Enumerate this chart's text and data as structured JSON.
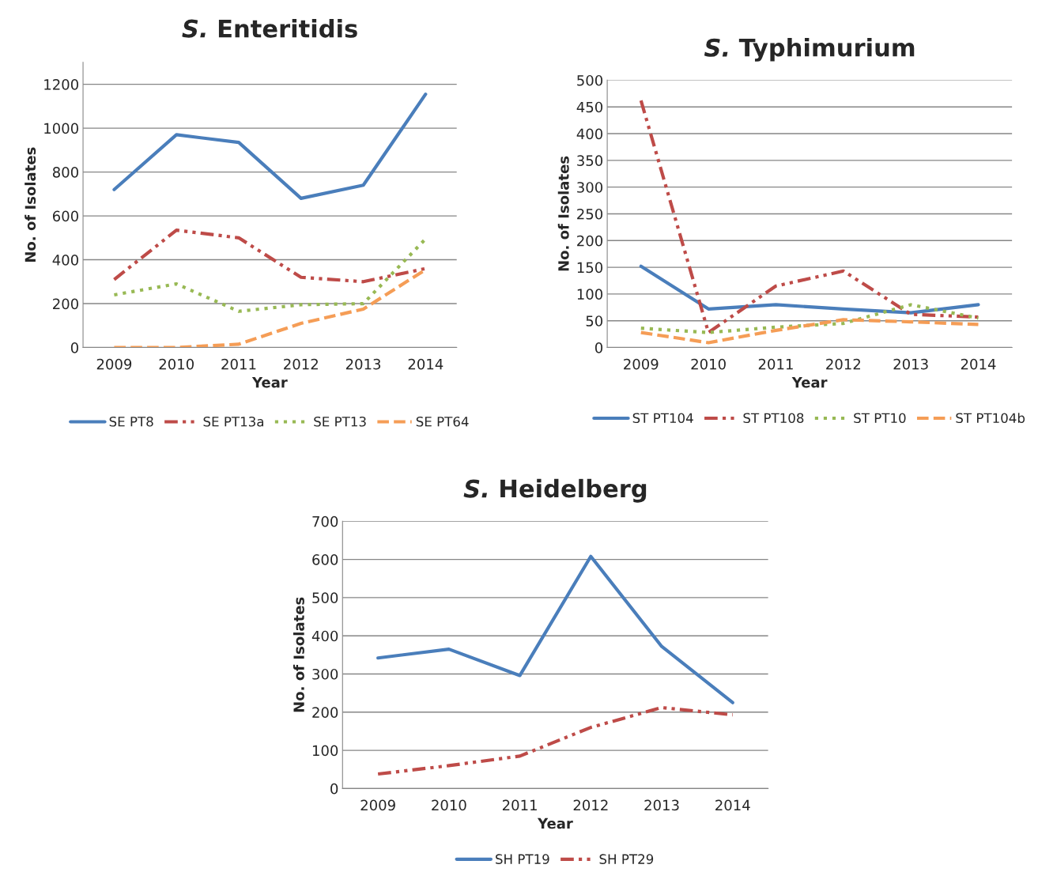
{
  "chart_data": [
    {
      "type": "line",
      "title": "S. Enteritidis",
      "xlabel": "Year",
      "ylabel": "No. of Isolates",
      "categories": [
        "2009",
        "2010",
        "2011",
        "2012",
        "2013",
        "2014"
      ],
      "ylim": [
        0,
        1300
      ],
      "yticks": [
        0,
        200,
        400,
        600,
        800,
        1000,
        1200
      ],
      "grid": "y",
      "legend": "bottom",
      "series": [
        {
          "name": "SE PT8",
          "color": "#4a7ebb",
          "line_style": "solid",
          "values": [
            720,
            970,
            935,
            680,
            740,
            1155
          ]
        },
        {
          "name": "SE PT13a",
          "color": "#be4b48",
          "line_style": "dashdot",
          "values": [
            310,
            535,
            500,
            320,
            300,
            360
          ]
        },
        {
          "name": "SE PT13",
          "color": "#98b954",
          "line_style": "dotted",
          "values": [
            240,
            290,
            165,
            195,
            200,
            495
          ]
        },
        {
          "name": "SE PT64",
          "color": "#f59d56",
          "line_style": "dashed",
          "values": [
            0,
            0,
            15,
            110,
            175,
            355
          ]
        }
      ]
    },
    {
      "type": "line",
      "title": "S. Typhimurium",
      "xlabel": "Year",
      "ylabel": "No. of Isolates",
      "categories": [
        "2009",
        "2010",
        "2011",
        "2012",
        "2013",
        "2014"
      ],
      "ylim": [
        0,
        500
      ],
      "yticks": [
        0,
        50,
        100,
        150,
        200,
        250,
        300,
        350,
        400,
        450,
        500
      ],
      "grid": "y",
      "legend": "bottom",
      "series": [
        {
          "name": "ST PT104",
          "color": "#4a7ebb",
          "line_style": "solid",
          "values": [
            152,
            72,
            80,
            72,
            65,
            80
          ]
        },
        {
          "name": "ST PT108",
          "color": "#be4b48",
          "line_style": "dashdot",
          "values": [
            462,
            28,
            115,
            143,
            62,
            57
          ]
        },
        {
          "name": "ST PT10",
          "color": "#98b954",
          "line_style": "dotted",
          "values": [
            36,
            28,
            38,
            45,
            80,
            55
          ]
        },
        {
          "name": "ST PT104b",
          "color": "#f59d56",
          "line_style": "dashed",
          "values": [
            28,
            9,
            32,
            52,
            48,
            43
          ]
        }
      ]
    },
    {
      "type": "line",
      "title": "S. Heidelberg",
      "xlabel": "Year",
      "ylabel": "No. of Isolates",
      "categories": [
        "2009",
        "2010",
        "2011",
        "2012",
        "2013",
        "2014"
      ],
      "ylim": [
        0,
        700
      ],
      "yticks": [
        0,
        100,
        200,
        300,
        400,
        500,
        600,
        700
      ],
      "grid": "y",
      "legend": "bottom",
      "series": [
        {
          "name": "SH PT19",
          "color": "#4a7ebb",
          "line_style": "solid",
          "values": [
            342,
            365,
            296,
            608,
            372,
            225
          ]
        },
        {
          "name": "SH PT29",
          "color": "#be4b48",
          "line_style": "dashdot",
          "values": [
            38,
            60,
            85,
            160,
            212,
            193
          ]
        }
      ]
    }
  ]
}
